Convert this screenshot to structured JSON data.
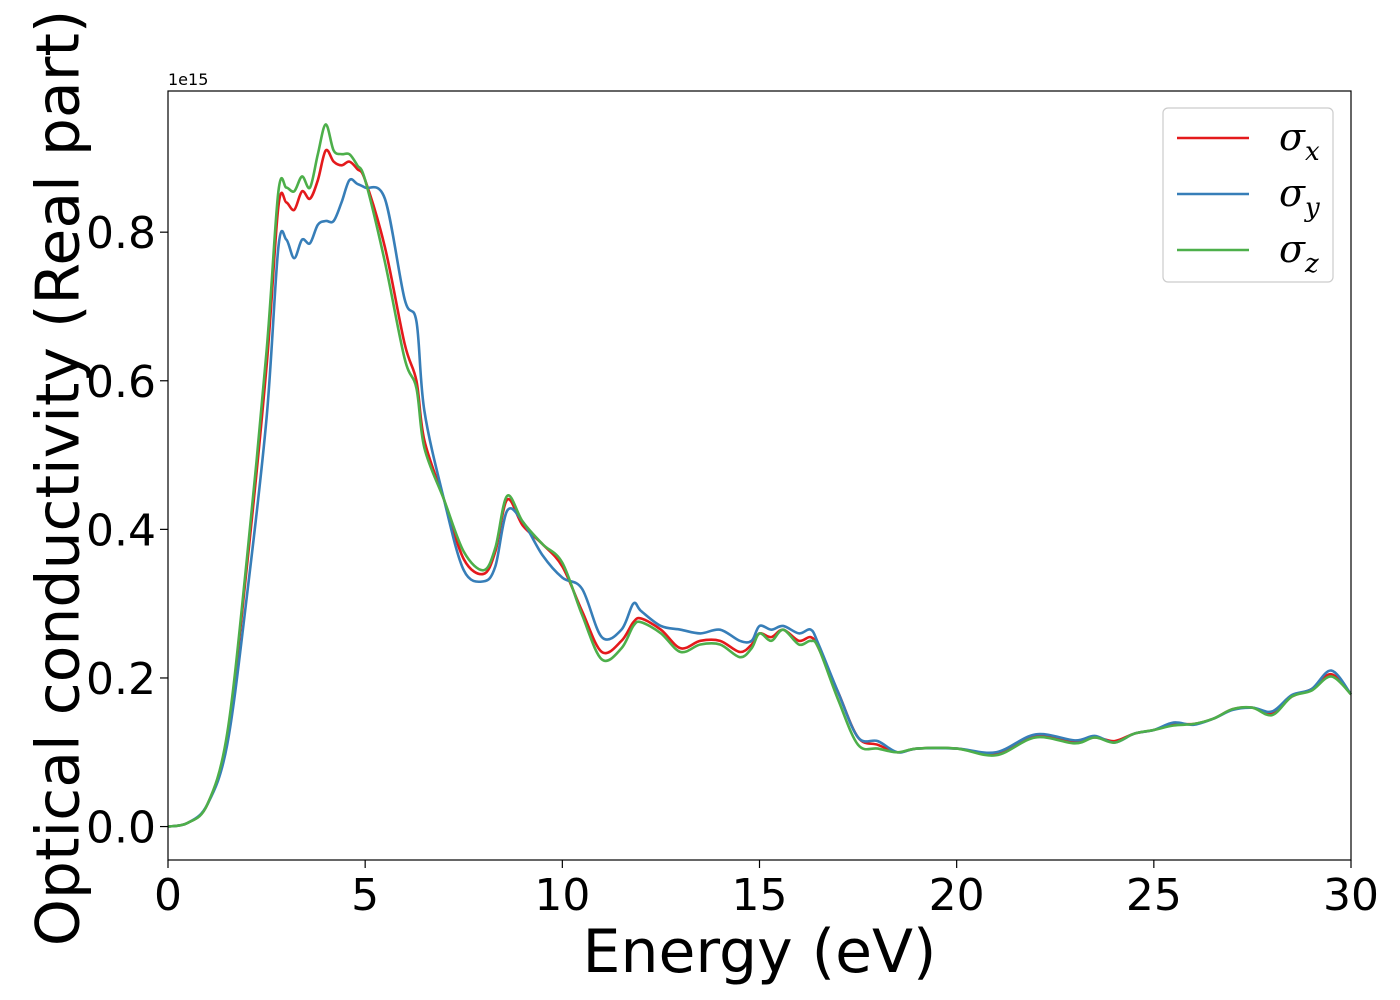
{
  "chart_data": {
    "type": "line",
    "title": "",
    "xlabel": "Energy (eV)",
    "ylabel": "Optical conductivity (Real part)",
    "y_offset_label": "1e15",
    "xlim": [
      0,
      30
    ],
    "ylim": [
      -0.045,
      0.99
    ],
    "xticks": [
      0,
      5,
      10,
      15,
      20,
      25,
      30
    ],
    "yticks": [
      0.0,
      0.2,
      0.4,
      0.6,
      0.8
    ],
    "xtick_labels": [
      "0",
      "5",
      "10",
      "15",
      "20",
      "25",
      "30"
    ],
    "ytick_labels": [
      "0.0",
      "0.2",
      "0.4",
      "0.6",
      "0.8"
    ],
    "grid": false,
    "legend_position": "top-right",
    "x": [
      0,
      0.5,
      1,
      1.5,
      2,
      2.5,
      2.8,
      3,
      3.2,
      3.4,
      3.6,
      3.8,
      4,
      4.2,
      4.4,
      4.6,
      4.8,
      5,
      5.5,
      6,
      6.3,
      6.5,
      7,
      7.5,
      8,
      8.3,
      8.6,
      9,
      9.5,
      10,
      10.5,
      11,
      11.5,
      11.8,
      12,
      12.5,
      13,
      13.5,
      14,
      14.5,
      14.8,
      15,
      15.3,
      15.6,
      16,
      16.3,
      16.5,
      17,
      17.5,
      18,
      18.5,
      19,
      20,
      21,
      22,
      23,
      23.5,
      24,
      24.5,
      25,
      25.5,
      26,
      26.5,
      27,
      27.5,
      28,
      28.5,
      29,
      29.5,
      30
    ],
    "series": [
      {
        "name": "σx",
        "color": "#e41a1c",
        "values": [
          0,
          0.005,
          0.03,
          0.12,
          0.35,
          0.62,
          0.835,
          0.84,
          0.83,
          0.855,
          0.845,
          0.87,
          0.91,
          0.895,
          0.89,
          0.895,
          0.885,
          0.87,
          0.78,
          0.65,
          0.6,
          0.52,
          0.44,
          0.36,
          0.34,
          0.37,
          0.44,
          0.405,
          0.38,
          0.35,
          0.29,
          0.235,
          0.25,
          0.275,
          0.28,
          0.265,
          0.24,
          0.25,
          0.25,
          0.235,
          0.245,
          0.26,
          0.255,
          0.265,
          0.25,
          0.255,
          0.24,
          0.18,
          0.12,
          0.11,
          0.1,
          0.105,
          0.105,
          0.098,
          0.122,
          0.114,
          0.12,
          0.115,
          0.125,
          0.13,
          0.138,
          0.138,
          0.145,
          0.158,
          0.16,
          0.152,
          0.175,
          0.185,
          0.205,
          0.178
        ]
      },
      {
        "name": "σy",
        "color": "#377eb8",
        "values": [
          0,
          0.005,
          0.03,
          0.11,
          0.31,
          0.55,
          0.78,
          0.79,
          0.765,
          0.79,
          0.785,
          0.81,
          0.815,
          0.815,
          0.84,
          0.87,
          0.865,
          0.86,
          0.845,
          0.71,
          0.68,
          0.56,
          0.44,
          0.345,
          0.33,
          0.35,
          0.425,
          0.41,
          0.365,
          0.335,
          0.32,
          0.255,
          0.265,
          0.3,
          0.29,
          0.27,
          0.265,
          0.26,
          0.265,
          0.25,
          0.25,
          0.27,
          0.265,
          0.27,
          0.26,
          0.265,
          0.245,
          0.18,
          0.12,
          0.115,
          0.1,
          0.105,
          0.105,
          0.1,
          0.124,
          0.116,
          0.122,
          0.113,
          0.125,
          0.13,
          0.14,
          0.137,
          0.145,
          0.157,
          0.16,
          0.155,
          0.177,
          0.185,
          0.21,
          0.178
        ]
      },
      {
        "name": "σz",
        "color": "#4daf4a",
        "values": [
          0,
          0.005,
          0.03,
          0.125,
          0.36,
          0.64,
          0.855,
          0.86,
          0.855,
          0.875,
          0.86,
          0.905,
          0.945,
          0.91,
          0.905,
          0.905,
          0.89,
          0.87,
          0.76,
          0.63,
          0.59,
          0.51,
          0.44,
          0.37,
          0.345,
          0.375,
          0.445,
          0.41,
          0.38,
          0.355,
          0.285,
          0.225,
          0.24,
          0.27,
          0.275,
          0.26,
          0.235,
          0.245,
          0.245,
          0.228,
          0.24,
          0.26,
          0.25,
          0.265,
          0.245,
          0.25,
          0.24,
          0.17,
          0.11,
          0.105,
          0.1,
          0.105,
          0.105,
          0.096,
          0.12,
          0.112,
          0.12,
          0.113,
          0.125,
          0.13,
          0.136,
          0.138,
          0.145,
          0.158,
          0.16,
          0.15,
          0.175,
          0.183,
          0.202,
          0.178
        ]
      }
    ]
  }
}
